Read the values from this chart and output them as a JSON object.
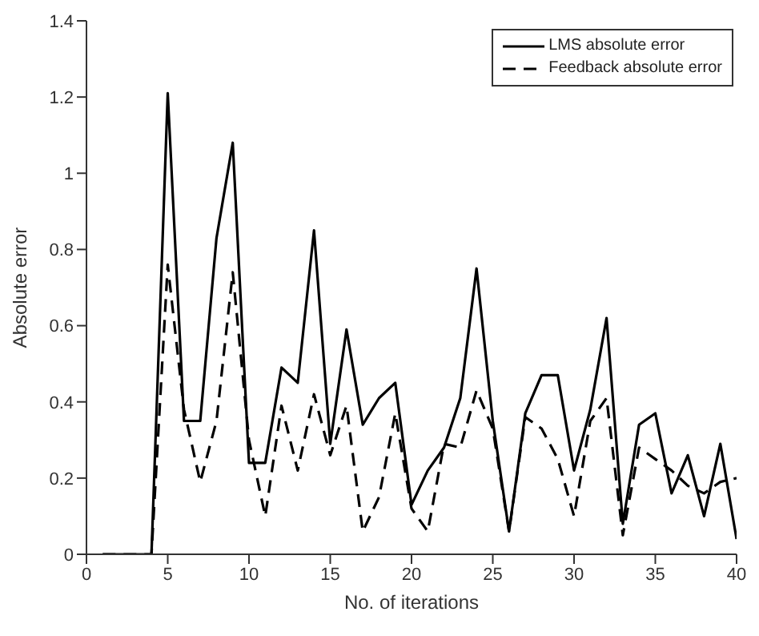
{
  "chart_data": {
    "type": "line",
    "xlabel": "No. of iterations",
    "ylabel": "Absolute error",
    "x": [
      1,
      2,
      3,
      4,
      5,
      6,
      7,
      8,
      9,
      10,
      11,
      12,
      13,
      14,
      15,
      16,
      17,
      18,
      19,
      20,
      21,
      22,
      23,
      24,
      25,
      26,
      27,
      28,
      29,
      30,
      31,
      32,
      33,
      34,
      35,
      36,
      37,
      38,
      39,
      40
    ],
    "series": [
      {
        "name": "LMS absolute error",
        "color": "#000000",
        "line_style": "solid",
        "values": [
          0,
          0,
          0,
          0,
          1.21,
          0.35,
          0.35,
          0.83,
          1.08,
          0.24,
          0.24,
          0.49,
          0.45,
          0.85,
          0.29,
          0.59,
          0.34,
          0.41,
          0.45,
          0.13,
          0.22,
          0.28,
          0.41,
          0.75,
          0.35,
          0.06,
          0.37,
          0.47,
          0.47,
          0.22,
          0.38,
          0.62,
          0.08,
          0.34,
          0.37,
          0.16,
          0.26,
          0.1,
          0.29,
          0.04
        ]
      },
      {
        "name": "Feedback absolute error",
        "color": "#000000",
        "line_style": "dashed",
        "values": [
          0,
          0,
          0,
          0,
          0.76,
          0.38,
          0.19,
          0.35,
          0.74,
          0.3,
          0.1,
          0.39,
          0.22,
          0.42,
          0.26,
          0.39,
          0.06,
          0.15,
          0.37,
          0.12,
          0.06,
          0.29,
          0.28,
          0.43,
          0.33,
          0.06,
          0.36,
          0.33,
          0.25,
          0.1,
          0.35,
          0.41,
          0.05,
          0.28,
          0.25,
          0.22,
          0.18,
          0.16,
          0.19,
          0.2
        ]
      }
    ],
    "xlim": [
      0,
      40
    ],
    "xticks": [
      0,
      5,
      10,
      15,
      20,
      25,
      30,
      35,
      40
    ],
    "ylim": [
      0,
      1.4
    ],
    "yticks": [
      0,
      0.2,
      0.4,
      0.6,
      0.8,
      1,
      1.2,
      1.4
    ],
    "grid": false,
    "legend": "top right",
    "marker": "none"
  }
}
